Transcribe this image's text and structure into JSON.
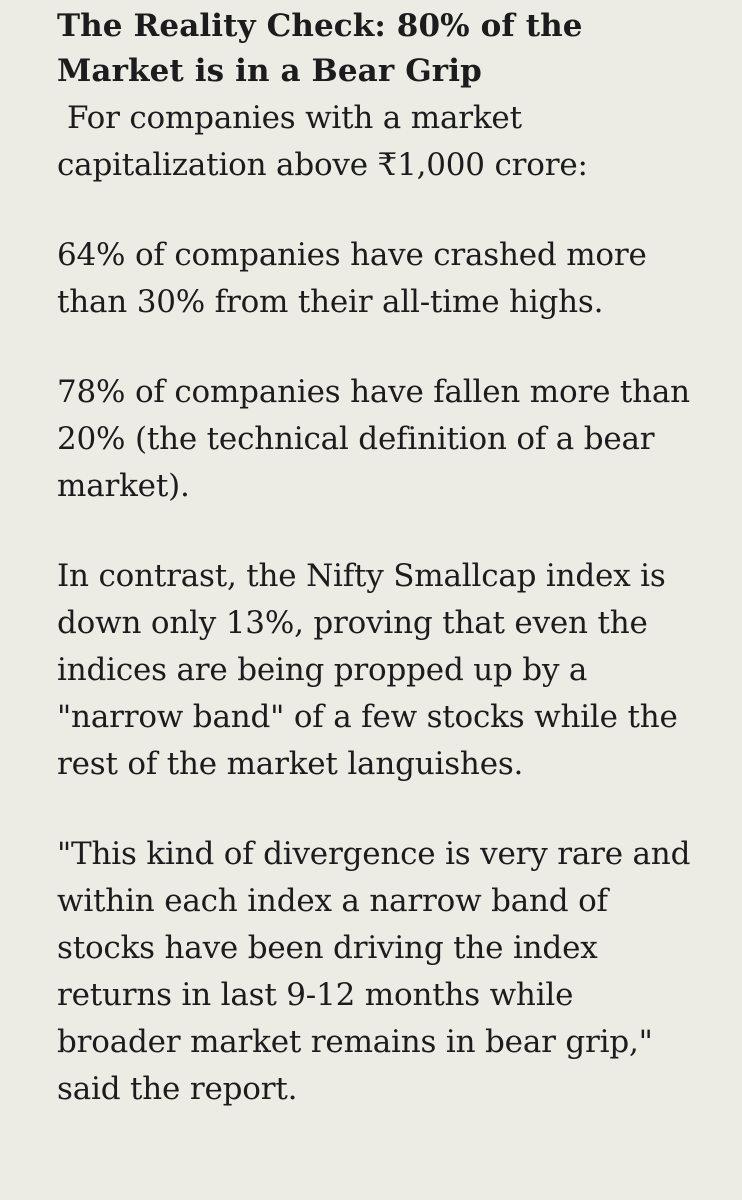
{
  "article": {
    "heading": "The Reality Check: 80% of the Market is in a Bear Grip",
    "intro": "For companies with a market capitalization above ₹1,000 crore:",
    "paragraphs": [
      "64% of companies have crashed more than 30% from their all-time highs.",
      "78% of companies have fallen more than 20% (the technical definition of a bear market).",
      "In contrast, the Nifty Smallcap index is down only 13%, proving that even the indices are being propped up by a \"narrow band\" of a few stocks while the rest of the market languishes.",
      "\"This kind of divergence is very rare and within each index a narrow band of stocks have been driving the index returns in last 9-12 months while broader market remains in bear grip,\" said the report."
    ]
  }
}
